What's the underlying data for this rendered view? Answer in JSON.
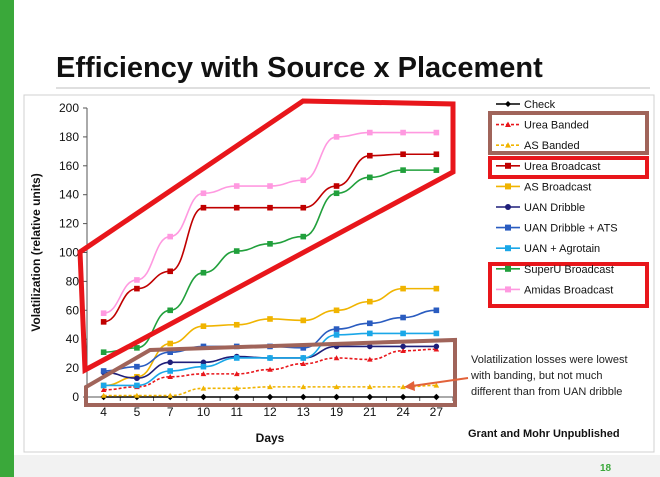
{
  "slide": {
    "title": "Efficiency with Source x Placement",
    "credit": "Grant and Mohr Unpublished",
    "page_number": "18",
    "annotation_lines": [
      "Volatilization losses were lowest",
      "with banding, but not much",
      "different than from UAN dribble"
    ],
    "colors": {
      "side_bar": "#3aa83a",
      "highlight_red": "#e8161b",
      "highlight_brown": "#a0645a"
    }
  },
  "chart_data": {
    "type": "line",
    "x": [
      "4",
      "5",
      "7",
      "10",
      "11",
      "12",
      "13",
      "19",
      "21",
      "24",
      "27"
    ],
    "xlabel": "Days",
    "ylabel": "Volatilization (relative units)",
    "ylim": [
      0,
      200
    ],
    "yticks": [
      0,
      20,
      40,
      60,
      80,
      100,
      120,
      140,
      160,
      180,
      200
    ],
    "grid": false,
    "legend_position": "right",
    "series": [
      {
        "name": "Check",
        "color": "#000000",
        "marker": "diamond",
        "dash": false,
        "values": [
          0,
          0,
          0,
          0,
          0,
          0,
          0,
          0,
          0,
          0,
          0
        ]
      },
      {
        "name": "Urea Banded",
        "color": "#e8161b",
        "marker": "triangle",
        "dash": true,
        "values": [
          5,
          7,
          14,
          16,
          16,
          19,
          23,
          27,
          26,
          32,
          33
        ]
      },
      {
        "name": "AS Banded",
        "color": "#f0b400",
        "marker": "triangle",
        "dash": true,
        "values": [
          1,
          1,
          1,
          6,
          6,
          7,
          7,
          7,
          7,
          7,
          8
        ]
      },
      {
        "name": "Urea Broadcast",
        "color": "#c00000",
        "marker": "square",
        "dash": false,
        "values": [
          52,
          75,
          87,
          131,
          131,
          131,
          131,
          146,
          167,
          168,
          168
        ]
      },
      {
        "name": "AS Broadcast",
        "color": "#f0b400",
        "marker": "square",
        "dash": false,
        "values": [
          8,
          14,
          37,
          49,
          50,
          54,
          53,
          60,
          66,
          75,
          75
        ]
      },
      {
        "name": "UAN Dribble",
        "color": "#1f1f7a",
        "marker": "circle",
        "dash": false,
        "values": [
          17,
          13,
          24,
          24,
          28,
          27,
          27,
          35,
          35,
          35,
          35
        ]
      },
      {
        "name": "UAN Dribble + ATS",
        "color": "#2a5cc0",
        "marker": "square",
        "dash": false,
        "values": [
          18,
          21,
          31,
          35,
          35,
          35,
          34,
          47,
          51,
          55,
          60
        ]
      },
      {
        "name": "UAN + Agrotain",
        "color": "#1aa7e8",
        "marker": "square",
        "dash": false,
        "values": [
          8,
          8,
          18,
          21,
          27,
          27,
          27,
          43,
          44,
          44,
          44
        ]
      },
      {
        "name": "SuperU Broadcast",
        "color": "#21a03c",
        "marker": "square",
        "dash": false,
        "values": [
          31,
          34,
          60,
          86,
          101,
          106,
          111,
          141,
          152,
          157,
          157
        ]
      },
      {
        "name": "Amidas Broadcast",
        "color": "#ff99e0",
        "marker": "square",
        "dash": false,
        "values": [
          58,
          81,
          111,
          141,
          146,
          146,
          150,
          180,
          183,
          183,
          183
        ]
      }
    ]
  }
}
